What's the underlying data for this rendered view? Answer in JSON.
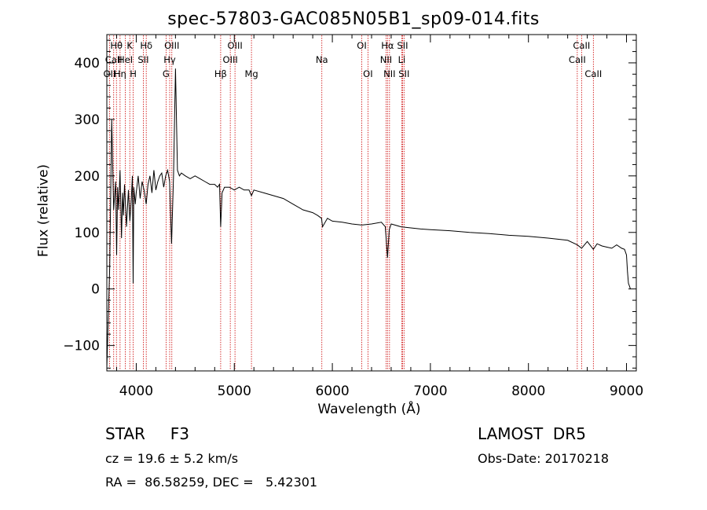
{
  "title": "spec-57803-GAC085N05B1_sp09-014.fits",
  "info": {
    "class": "STAR     F3",
    "cz": "cz = 19.6 ± 5.2 km/s",
    "radec": "RA =  86.58259, DEC =   5.42301",
    "survey": "LAMOST  DR5",
    "obs_date": "Obs-Date: 20170218"
  },
  "chart_data": {
    "type": "line",
    "title": "spec-57803-GAC085N05B1_sp09-014.fits",
    "xlabel": "Wavelength (Å)",
    "ylabel": "Flux (relative)",
    "xlim": [
      3700,
      9100
    ],
    "ylim": [
      -145,
      450
    ],
    "xticks": [
      4000,
      5000,
      6000,
      7000,
      8000,
      9000
    ],
    "xtick_labels": [
      "4000",
      "5000",
      "6000",
      "7000",
      "8000",
      "9000"
    ],
    "yticks": [
      -100,
      0,
      100,
      200,
      300,
      400
    ],
    "ytick_labels": [
      "−100",
      "0",
      "100",
      "200",
      "300",
      "400"
    ],
    "grid": false,
    "line_color": "#000000",
    "marker_color": "#cc0000",
    "spectrum": {
      "name": "",
      "x": [
        3700,
        3730,
        3750,
        3770,
        3790,
        3800,
        3810,
        3820,
        3835,
        3850,
        3860,
        3870,
        3880,
        3890,
        3900,
        3920,
        3935,
        3950,
        3960,
        3968,
        3975,
        3990,
        4000,
        4020,
        4040,
        4060,
        4080,
        4101,
        4120,
        4140,
        4160,
        4180,
        4200,
        4220,
        4240,
        4260,
        4280,
        4300,
        4320,
        4340,
        4360,
        4380,
        4400,
        4420,
        4440,
        4460,
        4500,
        4550,
        4600,
        4650,
        4700,
        4750,
        4800,
        4830,
        4850,
        4861,
        4875,
        4900,
        4950,
        5000,
        5050,
        5100,
        5150,
        5175,
        5200,
        5300,
        5400,
        5500,
        5600,
        5700,
        5800,
        5850,
        5890,
        5900,
        5950,
        6000,
        6100,
        6200,
        6300,
        6400,
        6500,
        6540,
        6563,
        6580,
        6600,
        6700,
        6800,
        6900,
        7000,
        7200,
        7400,
        7600,
        7800,
        8000,
        8200,
        8400,
        8498,
        8542,
        8600,
        8662,
        8700,
        8750,
        8800,
        8850,
        8900,
        8950,
        8980,
        9000,
        9010,
        9020,
        9030,
        9040
      ],
      "y": [
        -140,
        40,
        300,
        140,
        190,
        60,
        180,
        140,
        210,
        90,
        170,
        130,
        185,
        150,
        110,
        175,
        120,
        160,
        200,
        10,
        180,
        150,
        170,
        200,
        160,
        190,
        175,
        150,
        185,
        200,
        170,
        210,
        175,
        190,
        200,
        205,
        180,
        200,
        210,
        190,
        80,
        200,
        390,
        210,
        200,
        205,
        200,
        195,
        200,
        195,
        190,
        185,
        185,
        180,
        185,
        110,
        170,
        180,
        180,
        175,
        180,
        175,
        175,
        165,
        175,
        170,
        165,
        160,
        150,
        140,
        135,
        130,
        125,
        110,
        125,
        120,
        118,
        115,
        113,
        115,
        118,
        110,
        55,
        105,
        115,
        110,
        108,
        106,
        105,
        103,
        100,
        98,
        95,
        93,
        90,
        86,
        78,
        72,
        84,
        70,
        80,
        76,
        74,
        72,
        78,
        72,
        70,
        60,
        30,
        10,
        5,
        0
      ]
    },
    "line_markers": [
      {
        "name": "Hθ",
        "x": 3798,
        "row": 1
      },
      {
        "name": "CaII",
        "x": 3770,
        "row": 2
      },
      {
        "name": "OII",
        "x": 3727,
        "row": 3
      },
      {
        "name": "Hη",
        "x": 3835,
        "row": 3
      },
      {
        "name": "K",
        "x": 3934,
        "row": 1
      },
      {
        "name": "HeI",
        "x": 3889,
        "row": 2
      },
      {
        "name": "H",
        "x": 3969,
        "row": 3
      },
      {
        "name": "Hδ",
        "x": 4102,
        "row": 1
      },
      {
        "name": "SII",
        "x": 4072,
        "row": 2
      },
      {
        "name": "OIII",
        "x": 4363,
        "row": 1
      },
      {
        "name": "Hγ",
        "x": 4341,
        "row": 2
      },
      {
        "name": "G",
        "x": 4304,
        "row": 3
      },
      {
        "name": "Hβ",
        "x": 4861,
        "row": 3
      },
      {
        "name": "OIII",
        "x": 4959,
        "row": 2
      },
      {
        "name": "OIII",
        "x": 5007,
        "row": 1
      },
      {
        "name": "Mg",
        "x": 5175,
        "row": 3
      },
      {
        "name": "Na",
        "x": 5893,
        "row": 2
      },
      {
        "name": "OI",
        "x": 6300,
        "row": 1
      },
      {
        "name": "OI",
        "x": 6363,
        "row": 3
      },
      {
        "name": "Hα",
        "x": 6563,
        "row": 1
      },
      {
        "name": "NII",
        "x": 6548,
        "row": 2
      },
      {
        "name": "NII",
        "x": 6583,
        "row": 3
      },
      {
        "name": "SII",
        "x": 6716,
        "row": 1
      },
      {
        "name": "Li",
        "x": 6708,
        "row": 2
      },
      {
        "name": "SII",
        "x": 6731,
        "row": 3
      },
      {
        "name": "CaII",
        "x": 8542,
        "row": 1
      },
      {
        "name": "CaII",
        "x": 8498,
        "row": 2
      },
      {
        "name": "CaII",
        "x": 8662,
        "row": 3
      }
    ]
  }
}
